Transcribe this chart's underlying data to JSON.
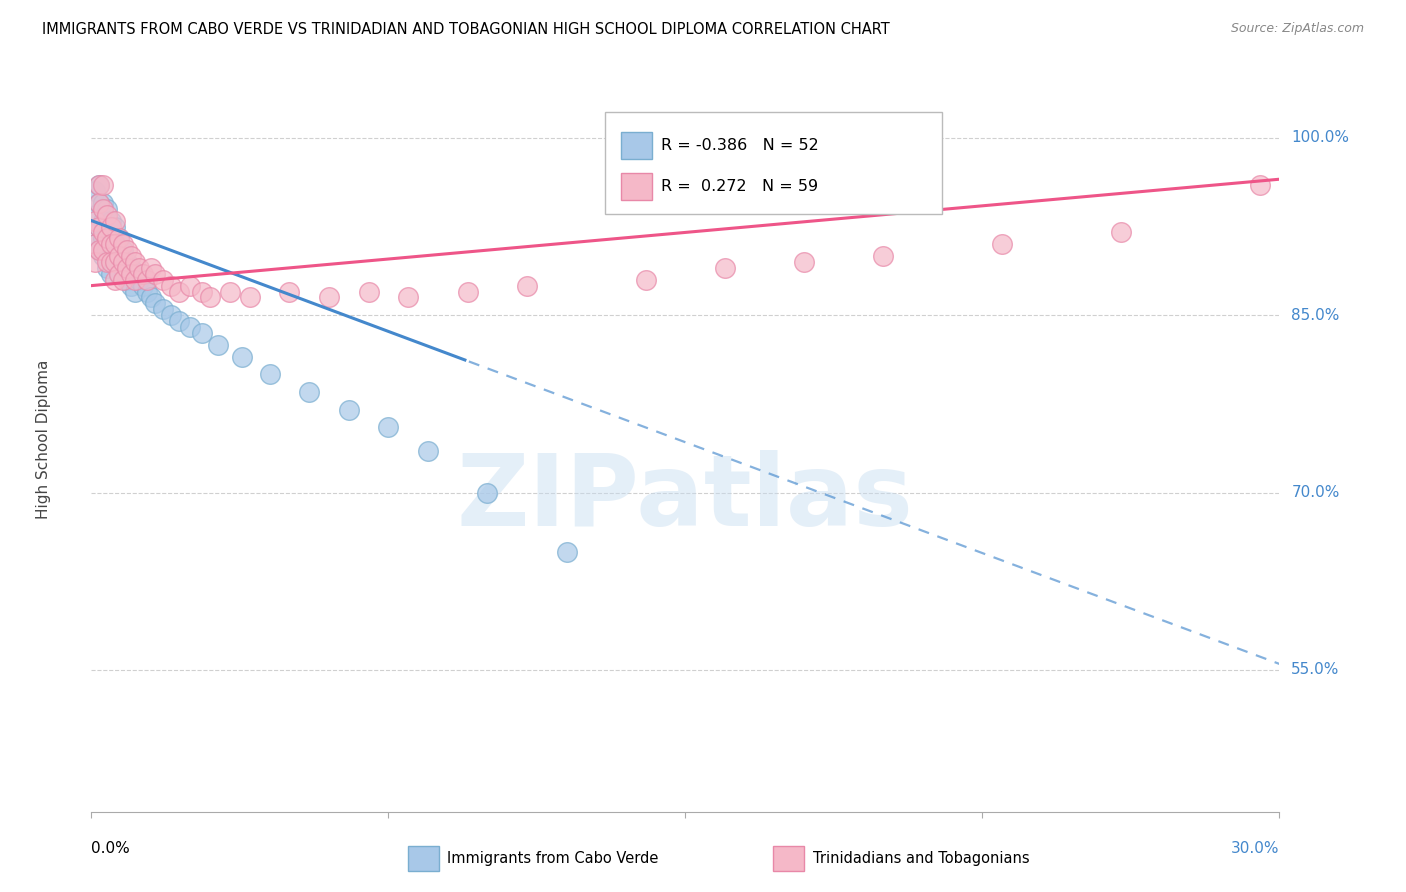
{
  "title": "IMMIGRANTS FROM CABO VERDE VS TRINIDADIAN AND TOBAGONIAN HIGH SCHOOL DIPLOMA CORRELATION CHART",
  "source": "Source: ZipAtlas.com",
  "ylabel": "High School Diploma",
  "ytick_labels": [
    "55.0%",
    "70.0%",
    "85.0%",
    "100.0%"
  ],
  "ytick_values": [
    0.55,
    0.7,
    0.85,
    1.0
  ],
  "xmin": 0.0,
  "xmax": 0.3,
  "ymin": 0.43,
  "ymax": 1.06,
  "blue_r": "-0.386",
  "blue_n": "52",
  "pink_r": "0.272",
  "pink_n": "59",
  "blue_color": "#a8c8e8",
  "pink_color": "#f5b8c8",
  "blue_edge_color": "#7aaed0",
  "pink_edge_color": "#e888a8",
  "blue_line_color": "#4488cc",
  "pink_line_color": "#ee5588",
  "legend_label_blue": "Immigrants from Cabo Verde",
  "legend_label_pink": "Trinidadians and Tobagonians",
  "watermark": "ZIPatlas",
  "blue_scatter_x": [
    0.001,
    0.001,
    0.001,
    0.002,
    0.002,
    0.002,
    0.002,
    0.003,
    0.003,
    0.003,
    0.003,
    0.004,
    0.004,
    0.004,
    0.004,
    0.005,
    0.005,
    0.005,
    0.005,
    0.006,
    0.006,
    0.006,
    0.007,
    0.007,
    0.007,
    0.008,
    0.008,
    0.009,
    0.009,
    0.01,
    0.01,
    0.011,
    0.011,
    0.012,
    0.013,
    0.014,
    0.015,
    0.016,
    0.018,
    0.02,
    0.022,
    0.025,
    0.028,
    0.032,
    0.038,
    0.045,
    0.055,
    0.065,
    0.075,
    0.085,
    0.1,
    0.12
  ],
  "blue_scatter_y": [
    0.955,
    0.935,
    0.91,
    0.96,
    0.945,
    0.925,
    0.905,
    0.945,
    0.93,
    0.915,
    0.9,
    0.94,
    0.92,
    0.905,
    0.89,
    0.93,
    0.915,
    0.9,
    0.885,
    0.925,
    0.91,
    0.895,
    0.915,
    0.9,
    0.885,
    0.905,
    0.89,
    0.895,
    0.88,
    0.89,
    0.875,
    0.885,
    0.87,
    0.88,
    0.875,
    0.87,
    0.865,
    0.86,
    0.855,
    0.85,
    0.845,
    0.84,
    0.835,
    0.825,
    0.815,
    0.8,
    0.785,
    0.77,
    0.755,
    0.735,
    0.7,
    0.65
  ],
  "pink_scatter_x": [
    0.001,
    0.001,
    0.001,
    0.002,
    0.002,
    0.002,
    0.002,
    0.003,
    0.003,
    0.003,
    0.003,
    0.004,
    0.004,
    0.004,
    0.005,
    0.005,
    0.005,
    0.006,
    0.006,
    0.006,
    0.006,
    0.007,
    0.007,
    0.007,
    0.008,
    0.008,
    0.008,
    0.009,
    0.009,
    0.01,
    0.01,
    0.011,
    0.011,
    0.012,
    0.013,
    0.014,
    0.015,
    0.016,
    0.018,
    0.02,
    0.022,
    0.025,
    0.028,
    0.03,
    0.035,
    0.04,
    0.05,
    0.06,
    0.07,
    0.08,
    0.095,
    0.11,
    0.14,
    0.16,
    0.18,
    0.2,
    0.23,
    0.26,
    0.295
  ],
  "pink_scatter_y": [
    0.93,
    0.91,
    0.895,
    0.96,
    0.945,
    0.925,
    0.905,
    0.96,
    0.94,
    0.92,
    0.905,
    0.935,
    0.915,
    0.895,
    0.925,
    0.91,
    0.895,
    0.93,
    0.91,
    0.895,
    0.88,
    0.915,
    0.9,
    0.885,
    0.91,
    0.895,
    0.88,
    0.905,
    0.89,
    0.9,
    0.885,
    0.895,
    0.88,
    0.89,
    0.885,
    0.88,
    0.89,
    0.885,
    0.88,
    0.875,
    0.87,
    0.875,
    0.87,
    0.865,
    0.87,
    0.865,
    0.87,
    0.865,
    0.87,
    0.865,
    0.87,
    0.875,
    0.88,
    0.89,
    0.895,
    0.9,
    0.91,
    0.92,
    0.96
  ]
}
